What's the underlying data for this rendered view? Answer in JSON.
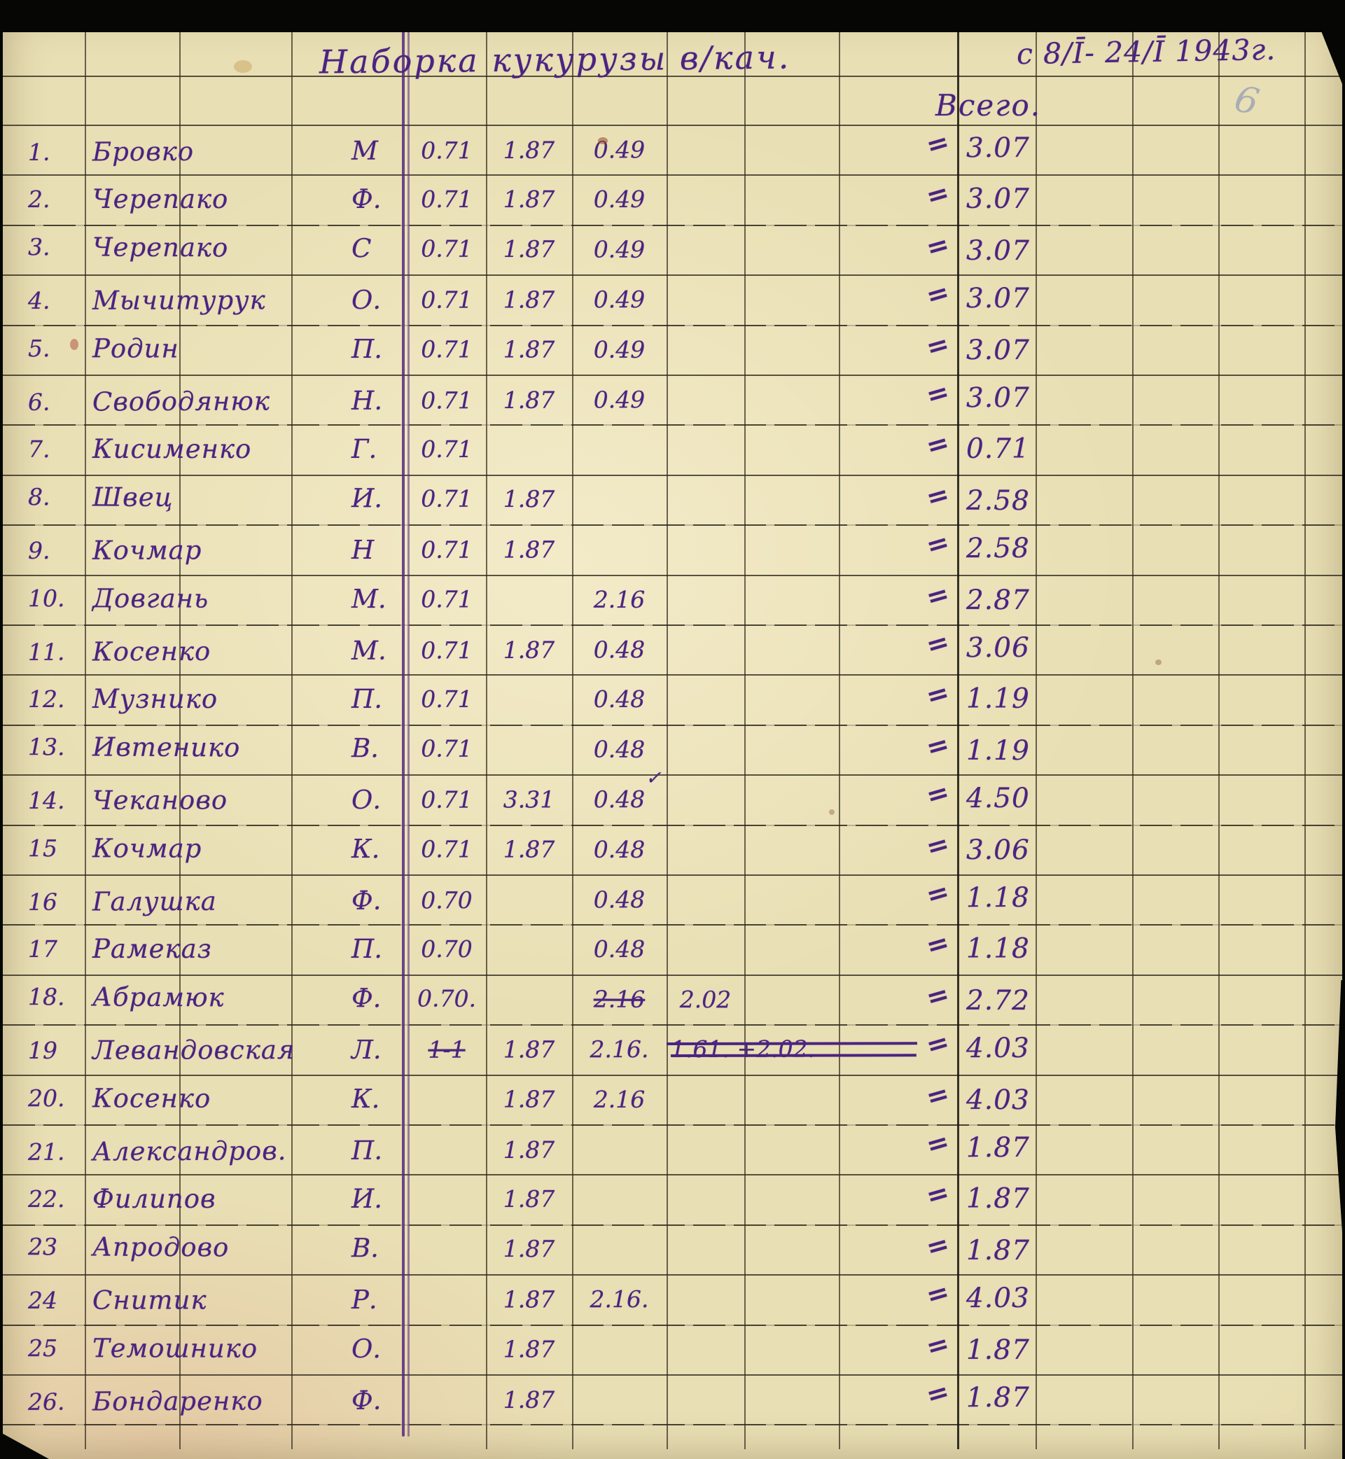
{
  "document": {
    "title": "Наборка кукурузы в/кач.",
    "date_range": "с 8/Ī- 24/Ī 1943г.",
    "total_header": "Всего.",
    "pencil_note": "6",
    "equals_sign": "=",
    "ink_color": "#4b2381",
    "paper_color": "#e9dfb4",
    "pencil_color": "#9aa3b4"
  },
  "table": {
    "rows": [
      {
        "num": "1.",
        "name": "Бровко",
        "initial": "М",
        "a": "0.71",
        "b": "1.87",
        "c": "0.49",
        "total": "3.07"
      },
      {
        "num": "2.",
        "name": "Черепако",
        "initial": "Ф.",
        "a": "0.71",
        "b": "1.87",
        "c": "0.49",
        "total": "3.07"
      },
      {
        "num": "3.",
        "name": "Черепако",
        "initial": "С",
        "a": "0.71",
        "b": "1.87",
        "c": "0.49",
        "total": "3.07"
      },
      {
        "num": "4.",
        "name": "Мычитурук",
        "initial": "О.",
        "a": "0.71",
        "b": "1.87",
        "c": "0.49",
        "total": "3.07"
      },
      {
        "num": "5.",
        "name": "Родин",
        "initial": "П.",
        "a": "0.71",
        "b": "1.87",
        "c": "0.49",
        "total": "3.07"
      },
      {
        "num": "6.",
        "name": "Свободянюк",
        "initial": "Н.",
        "a": "0.71",
        "b": "1.87",
        "c": "0.49",
        "total": "3.07"
      },
      {
        "num": "7.",
        "name": "Кисименко",
        "initial": "Г.",
        "a": "0.71",
        "total": "0.71"
      },
      {
        "num": "8.",
        "name": "Швец",
        "initial": "И.",
        "a": "0.71",
        "b": "1.87",
        "total": "2.58"
      },
      {
        "num": "9.",
        "name": "Кочмар",
        "initial": "Н",
        "a": "0.71",
        "b": "1.87",
        "total": "2.58"
      },
      {
        "num": "10.",
        "name": "Довгань",
        "initial": "М.",
        "a": "0.71",
        "c": "2.16",
        "total": "2.87"
      },
      {
        "num": "11.",
        "name": "Косенко",
        "initial": "М.",
        "a": "0.71",
        "b": "1.87",
        "c": "0.48",
        "total": "3.06"
      },
      {
        "num": "12.",
        "name": "Музнико",
        "initial": "П.",
        "a": "0.71",
        "c": "0.48",
        "total": "1.19"
      },
      {
        "num": "13.",
        "name": "Ивтенико",
        "initial": "В.",
        "a": "0.71",
        "c": "0.48",
        "total": "1.19"
      },
      {
        "num": "14.",
        "name": "Чеканово",
        "initial": "О.",
        "a": "0.71",
        "b": "3.31",
        "mark": "✓",
        "c": "0.48",
        "total": "4.50"
      },
      {
        "num": "15",
        "name": "Кочмар",
        "initial": "К.",
        "a": "0.71",
        "b": "1.87",
        "c": "0.48",
        "total": "3.06"
      },
      {
        "num": "16",
        "name": "Галушка",
        "initial": "Ф.",
        "a": "0.70",
        "c": "0.48",
        "total": "1.18"
      },
      {
        "num": "17",
        "name": "Рамеказ",
        "initial": "П.",
        "a": "0.70",
        "c": "0.48",
        "total": "1.18"
      },
      {
        "num": "18.",
        "name": "Абрамюк",
        "initial": "Ф.",
        "a": "0.70.",
        "c": "2.16",
        "c_struck": true,
        "d": "2.02",
        "total": "2.72"
      },
      {
        "num": "19",
        "name": "Левандовская",
        "initial": "Л.",
        "a": "1-1",
        "a_struck": true,
        "b": "1.87",
        "c": "2.16.",
        "de": "1.61. +2.02.",
        "de_struck": true,
        "total": "4.03"
      },
      {
        "num": "20.",
        "name": "Косенко",
        "initial": "К.",
        "b": "1.87",
        "c": "2.16",
        "total": "4.03"
      },
      {
        "num": "21.",
        "name": "Александров.",
        "initial": "П.",
        "b": "1.87",
        "total": "1.87"
      },
      {
        "num": "22.",
        "name": "Филипов",
        "initial": "И.",
        "b": "1.87",
        "total": "1.87"
      },
      {
        "num": "23",
        "name": "Апродово",
        "initial": "В.",
        "b": "1.87",
        "total": "1.87"
      },
      {
        "num": "24",
        "name": "Снитик",
        "initial": "Р.",
        "b": "1.87",
        "c": "2.16.",
        "total": "4.03"
      },
      {
        "num": "25",
        "name": "Темошнико",
        "initial": "О.",
        "b": "1.87",
        "total": "1.87"
      },
      {
        "num": "26.",
        "name": "Бондаренко",
        "initial": "Ф.",
        "b": "1.87",
        "total": "1.87"
      }
    ]
  }
}
